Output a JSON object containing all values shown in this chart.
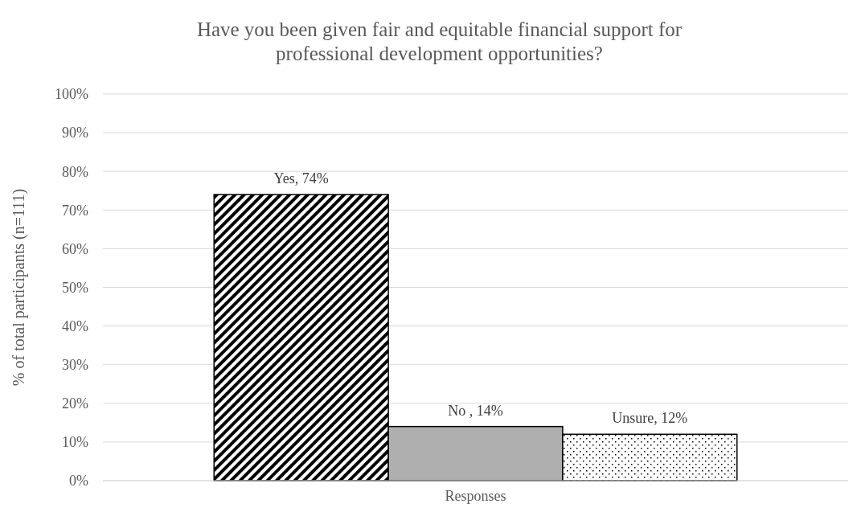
{
  "chart_data": {
    "type": "bar",
    "title": "Have you been given fair and equitable financial support for professional development opportunities?",
    "ylabel": "% of total participants (n=111)",
    "categories": [
      "Responses"
    ],
    "series": [
      {
        "color": "#000000",
        "values": [
          74
        ],
        "value_labels": [
          "Yes, 74%"
        ]
      },
      {
        "color": "#afafaf",
        "values": [
          14
        ],
        "value_labels": [
          "No , 14%"
        ]
      },
      {
        "color": "#000000",
        "values": [
          12
        ],
        "value_labels": [
          "Unsure, 12%"
        ]
      }
    ],
    "ylim": [
      0,
      100
    ],
    "yticks": [
      {
        "value": 0,
        "label": "0%"
      },
      {
        "value": 10,
        "label": "10%"
      },
      {
        "value": 20,
        "label": "20%"
      },
      {
        "value": 30,
        "label": "30%"
      },
      {
        "value": 40,
        "label": "40%"
      },
      {
        "value": 50,
        "label": "50%"
      },
      {
        "value": 60,
        "label": "60%"
      },
      {
        "value": 70,
        "label": "70%"
      },
      {
        "value": 80,
        "label": "80%"
      },
      {
        "value": 90,
        "label": "90%"
      },
      {
        "value": 100,
        "label": "100%"
      }
    ],
    "grid": "y"
  }
}
